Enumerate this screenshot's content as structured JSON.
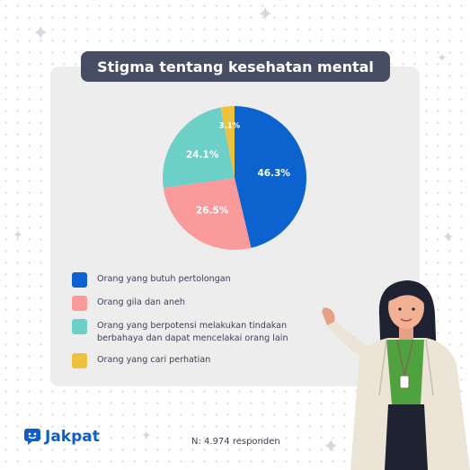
{
  "title": "Stigma tentang kesehatan mental",
  "chart_data": {
    "type": "pie",
    "title": "Stigma tentang kesehatan mental",
    "slices": [
      {
        "label": "Orang yang butuh pertolongan",
        "value": 46.3,
        "value_label": "46.3%",
        "color": "#0c63cf"
      },
      {
        "label": "Orang gila dan aneh",
        "value": 26.5,
        "value_label": "26.5%",
        "color": "#fa9a9a"
      },
      {
        "label": "Orang yang berpotensi melakukan tindakan berbahaya dan dapat mencelakai orang lain",
        "value": 24.1,
        "value_label": "24.1%",
        "color": "#6ccfc8"
      },
      {
        "label": "Orang yang cari perhatian",
        "value": 3.1,
        "value_label": "3.1%",
        "color": "#eec23f"
      }
    ]
  },
  "legend": [
    {
      "label": "Orang yang butuh pertolongan",
      "color": "#0c63cf"
    },
    {
      "label": "Orang gila dan aneh",
      "color": "#fa9a9a"
    },
    {
      "label": "Orang yang berpotensi melakukan tindakan berbahaya dan dapat mencelakai orang lain",
      "color": "#6ccfc8"
    },
    {
      "label": "Orang yang cari perhatian",
      "color": "#eec23f"
    }
  ],
  "brand": "Jakpat",
  "footnote": "N: 4.974 responden",
  "icons": [
    "sparkle-icon",
    "jakpat-logo-icon",
    "woman-illustration"
  ]
}
